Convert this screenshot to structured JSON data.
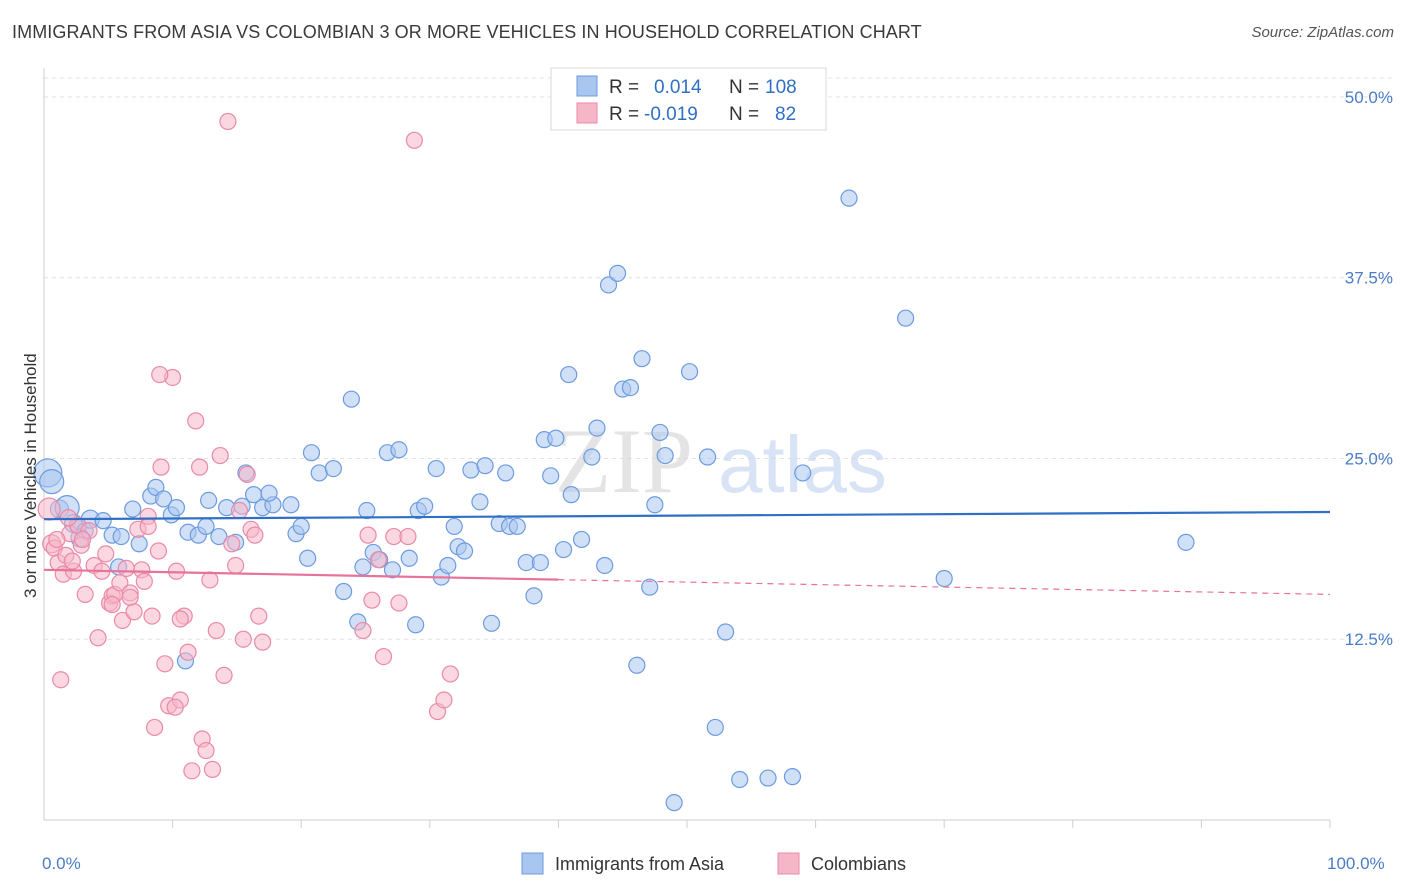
{
  "header": {
    "title": "IMMIGRANTS FROM ASIA VS COLOMBIAN 3 OR MORE VEHICLES IN HOUSEHOLD CORRELATION CHART",
    "source": "Source: ZipAtlas.com"
  },
  "watermark": {
    "zip": "ZIP",
    "atlas": "atlas"
  },
  "legend": {
    "rows": [
      {
        "r_label": "R =",
        "r_value": "0.014",
        "n_label": "N =",
        "n_value": "108",
        "color": "#a9c6f0"
      },
      {
        "r_label": "R =",
        "r_value": "-0.019",
        "n_label": "N =",
        "n_value": "82",
        "color": "#f5b6c8"
      }
    ]
  },
  "chart_data": {
    "type": "scatter",
    "title": "IMMIGRANTS FROM ASIA VS COLOMBIAN 3 OR MORE VEHICLES IN HOUSEHOLD CORRELATION CHART",
    "xlabel": "",
    "ylabel": "3 or more Vehicles in Household",
    "xlim": [
      0,
      100
    ],
    "ylim": [
      0,
      52
    ],
    "x_tick_labels": [
      "0.0%",
      "100.0%"
    ],
    "y_ticks": [
      12.5,
      25.0,
      37.5,
      50.0
    ],
    "y_tick_labels": [
      "12.5%",
      "25.0%",
      "37.5%",
      "50.0%"
    ],
    "grid": true,
    "legend_position": "top-center",
    "series": [
      {
        "name": "Immigrants from Asia",
        "color": "#6d9be0",
        "fill": "#a9c6f0",
        "trend": {
          "x": [
            0,
            100
          ],
          "y": [
            20.8,
            21.3
          ],
          "dashed_from": null
        },
        "points": [
          [
            0.3,
            24.0,
            14
          ],
          [
            0.6,
            23.4,
            12
          ],
          [
            1.2,
            21.5,
            9
          ],
          [
            1.8,
            21.6,
            12
          ],
          [
            2.3,
            20.5,
            9
          ],
          [
            2.7,
            20.3,
            8
          ],
          [
            3.2,
            20.0,
            8
          ],
          [
            2.8,
            19.5,
            9
          ],
          [
            3.6,
            20.8,
            9
          ],
          [
            4.6,
            20.7,
            8
          ],
          [
            5.3,
            19.7,
            8
          ],
          [
            6.0,
            19.6,
            8
          ],
          [
            7.4,
            19.1,
            8
          ],
          [
            5.8,
            17.5,
            8
          ],
          [
            6.9,
            21.5,
            8
          ],
          [
            8.3,
            22.4,
            8
          ],
          [
            8.7,
            23.0,
            8
          ],
          [
            9.3,
            22.2,
            8
          ],
          [
            9.9,
            21.1,
            8
          ],
          [
            10.3,
            21.6,
            8
          ],
          [
            11.2,
            19.9,
            8
          ],
          [
            12.0,
            19.7,
            8
          ],
          [
            11.0,
            11.0,
            8
          ],
          [
            12.6,
            20.3,
            8
          ],
          [
            12.8,
            22.1,
            8
          ],
          [
            13.6,
            19.6,
            8
          ],
          [
            14.2,
            21.6,
            8
          ],
          [
            14.9,
            19.2,
            8
          ],
          [
            15.4,
            21.7,
            8
          ],
          [
            15.7,
            24.0,
            8
          ],
          [
            16.3,
            22.5,
            8
          ],
          [
            17.0,
            21.6,
            8
          ],
          [
            17.8,
            21.8,
            8
          ],
          [
            17.5,
            22.6,
            8
          ],
          [
            19.2,
            21.8,
            8
          ],
          [
            19.6,
            19.8,
            8
          ],
          [
            20.0,
            20.3,
            8
          ],
          [
            20.5,
            18.1,
            8
          ],
          [
            20.8,
            25.4,
            8
          ],
          [
            21.4,
            24.0,
            8
          ],
          [
            22.5,
            24.3,
            8
          ],
          [
            23.3,
            15.8,
            8
          ],
          [
            23.9,
            29.1,
            8
          ],
          [
            24.4,
            13.7,
            8
          ],
          [
            24.8,
            17.5,
            8
          ],
          [
            25.1,
            21.4,
            8
          ],
          [
            25.6,
            18.5,
            8
          ],
          [
            26.1,
            18.0,
            8
          ],
          [
            26.7,
            25.4,
            8
          ],
          [
            27.1,
            17.3,
            8
          ],
          [
            27.6,
            25.6,
            8
          ],
          [
            28.4,
            18.1,
            8
          ],
          [
            28.9,
            13.5,
            8
          ],
          [
            29.1,
            21.4,
            8
          ],
          [
            29.6,
            21.7,
            8
          ],
          [
            30.5,
            24.3,
            8
          ],
          [
            30.9,
            16.8,
            8
          ],
          [
            31.4,
            17.6,
            8
          ],
          [
            31.9,
            20.3,
            8
          ],
          [
            32.2,
            18.9,
            8
          ],
          [
            32.7,
            18.6,
            8
          ],
          [
            33.2,
            24.2,
            8
          ],
          [
            33.9,
            22.0,
            8
          ],
          [
            34.3,
            24.5,
            8
          ],
          [
            34.8,
            13.6,
            8
          ],
          [
            35.4,
            20.5,
            8
          ],
          [
            35.9,
            24.0,
            8
          ],
          [
            36.2,
            20.3,
            8
          ],
          [
            36.8,
            20.3,
            8
          ],
          [
            37.5,
            17.8,
            8
          ],
          [
            38.1,
            15.5,
            8
          ],
          [
            38.6,
            17.8,
            8
          ],
          [
            38.9,
            26.3,
            8
          ],
          [
            39.4,
            23.8,
            8
          ],
          [
            39.8,
            26.4,
            8
          ],
          [
            40.4,
            18.7,
            8
          ],
          [
            40.8,
            30.8,
            8
          ],
          [
            41.0,
            22.5,
            8
          ],
          [
            41.8,
            19.4,
            8
          ],
          [
            42.6,
            25.1,
            8
          ],
          [
            43.0,
            27.1,
            8
          ],
          [
            43.6,
            17.6,
            8
          ],
          [
            43.9,
            37.0,
            8
          ],
          [
            44.6,
            37.8,
            8
          ],
          [
            45.0,
            29.8,
            8
          ],
          [
            45.6,
            29.9,
            8
          ],
          [
            46.1,
            10.7,
            8
          ],
          [
            46.5,
            31.9,
            8
          ],
          [
            47.1,
            16.1,
            8
          ],
          [
            47.5,
            21.8,
            8
          ],
          [
            47.9,
            26.8,
            8
          ],
          [
            48.3,
            25.2,
            8
          ],
          [
            49.0,
            1.2,
            8
          ],
          [
            50.2,
            31.0,
            8
          ],
          [
            51.6,
            25.1,
            8
          ],
          [
            52.2,
            6.4,
            8
          ],
          [
            53.0,
            13.0,
            8
          ],
          [
            54.1,
            2.8,
            8
          ],
          [
            56.3,
            2.9,
            8
          ],
          [
            58.2,
            3.0,
            8
          ],
          [
            59.0,
            24.0,
            8
          ],
          [
            62.6,
            43.0,
            8
          ],
          [
            67.0,
            34.7,
            8
          ],
          [
            70.0,
            16.7,
            8
          ],
          [
            88.8,
            19.2,
            8
          ]
        ]
      },
      {
        "name": "Colombians",
        "color": "#ea8aa8",
        "fill": "#f5b6c8",
        "trend": {
          "x": [
            0,
            100
          ],
          "y": [
            17.3,
            15.6
          ],
          "dashed_from": 40
        },
        "points": [
          [
            0.4,
            21.5,
            11
          ],
          [
            0.6,
            19.1,
            9
          ],
          [
            0.8,
            18.8,
            8
          ],
          [
            1.1,
            17.8,
            8
          ],
          [
            1.3,
            9.7,
            8
          ],
          [
            1.5,
            17.0,
            8
          ],
          [
            1.7,
            18.3,
            8
          ],
          [
            2.0,
            19.8,
            8
          ],
          [
            2.3,
            17.2,
            8
          ],
          [
            2.6,
            20.4,
            8
          ],
          [
            2.9,
            19.0,
            8
          ],
          [
            3.2,
            15.6,
            8
          ],
          [
            3.5,
            20.0,
            8
          ],
          [
            3.9,
            17.6,
            8
          ],
          [
            4.2,
            12.6,
            8
          ],
          [
            4.5,
            17.2,
            8
          ],
          [
            4.8,
            18.4,
            8
          ],
          [
            5.1,
            15.0,
            8
          ],
          [
            5.3,
            15.5,
            8
          ],
          [
            5.5,
            15.6,
            8
          ],
          [
            5.9,
            16.4,
            8
          ],
          [
            6.1,
            13.8,
            8
          ],
          [
            6.4,
            17.4,
            8
          ],
          [
            6.7,
            15.7,
            8
          ],
          [
            7.0,
            14.4,
            8
          ],
          [
            7.3,
            20.1,
            8
          ],
          [
            7.6,
            17.3,
            8
          ],
          [
            7.8,
            16.5,
            8
          ],
          [
            8.1,
            21.0,
            8
          ],
          [
            8.4,
            14.1,
            8
          ],
          [
            8.6,
            6.4,
            8
          ],
          [
            8.9,
            18.6,
            8
          ],
          [
            9.1,
            24.4,
            8
          ],
          [
            9.4,
            10.8,
            8
          ],
          [
            9.7,
            7.9,
            8
          ],
          [
            10.0,
            30.6,
            8
          ],
          [
            10.3,
            17.2,
            8
          ],
          [
            10.6,
            8.3,
            8
          ],
          [
            10.9,
            14.1,
            8
          ],
          [
            11.2,
            11.6,
            8
          ],
          [
            11.5,
            3.4,
            8
          ],
          [
            11.8,
            27.6,
            8
          ],
          [
            12.1,
            24.4,
            8
          ],
          [
            12.3,
            5.6,
            8
          ],
          [
            12.6,
            4.8,
            8
          ],
          [
            12.9,
            16.6,
            8
          ],
          [
            13.1,
            3.5,
            8
          ],
          [
            13.4,
            13.1,
            8
          ],
          [
            13.7,
            25.2,
            8
          ],
          [
            14.0,
            10.0,
            8
          ],
          [
            14.3,
            48.3,
            8
          ],
          [
            14.6,
            19.1,
            8
          ],
          [
            14.9,
            17.6,
            8
          ],
          [
            15.2,
            21.4,
            8
          ],
          [
            15.5,
            12.5,
            8
          ],
          [
            15.8,
            23.9,
            8
          ],
          [
            16.1,
            20.1,
            8
          ],
          [
            16.4,
            19.7,
            8
          ],
          [
            16.7,
            14.1,
            8
          ],
          [
            17.0,
            12.3,
            8
          ],
          [
            24.8,
            13.1,
            8
          ],
          [
            25.2,
            19.7,
            8
          ],
          [
            25.5,
            15.2,
            8
          ],
          [
            26.0,
            18.0,
            8
          ],
          [
            26.4,
            11.3,
            8
          ],
          [
            27.2,
            19.6,
            8
          ],
          [
            27.6,
            15.0,
            8
          ],
          [
            28.3,
            19.6,
            8
          ],
          [
            28.8,
            47.0,
            8
          ],
          [
            30.6,
            7.5,
            8
          ],
          [
            31.1,
            8.3,
            8
          ],
          [
            31.6,
            10.1,
            8
          ],
          [
            6.7,
            15.4,
            8
          ],
          [
            9.0,
            30.8,
            8
          ],
          [
            10.2,
            7.8,
            8
          ],
          [
            10.6,
            13.9,
            8
          ],
          [
            5.3,
            14.9,
            8
          ],
          [
            3.0,
            19.4,
            8
          ],
          [
            2.2,
            17.9,
            8
          ],
          [
            1.0,
            19.4,
            8
          ],
          [
            1.9,
            20.9,
            8
          ],
          [
            8.1,
            20.3,
            8
          ]
        ]
      }
    ]
  },
  "bottom_legend": {
    "items": [
      {
        "label": "Immigrants from Asia",
        "color": "#a9c6f0"
      },
      {
        "label": "Colombians",
        "color": "#f5b6c8"
      }
    ]
  }
}
